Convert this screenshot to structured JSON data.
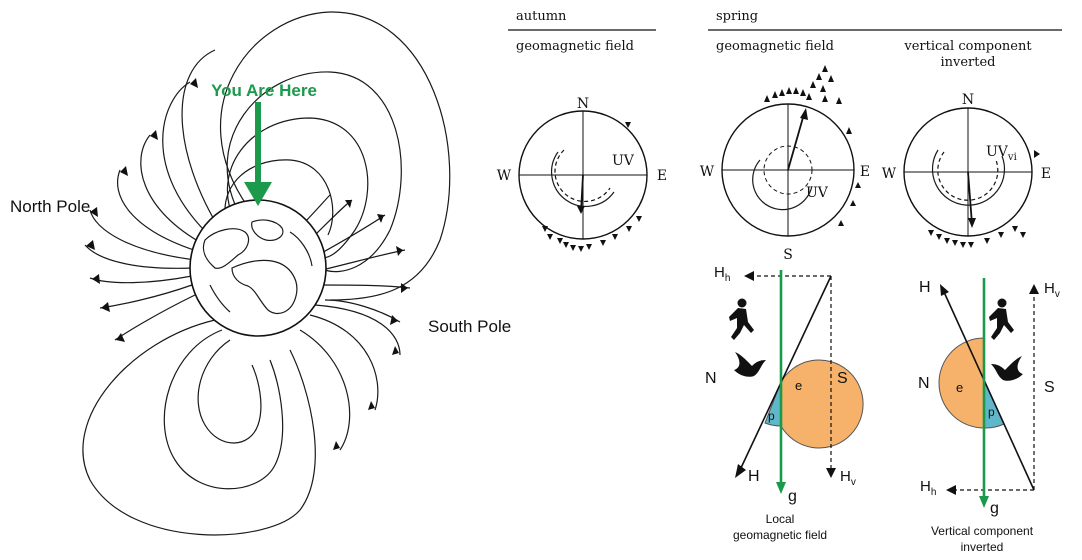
{
  "earth_panel": {
    "you_are_here": "You Are Here",
    "north_pole": "North Pole",
    "south_pole": "South Pole"
  },
  "headers": {
    "autumn": "autumn",
    "spring": "spring",
    "autumn_sub": "geomagnetic field",
    "spring_sub": "geomagnetic field",
    "inverted_sub_line1": "vertical component",
    "inverted_sub_line2": "inverted"
  },
  "compass": {
    "N": "N",
    "S": "S",
    "E": "E",
    "W": "W",
    "uv": "UV",
    "uv_vi_base": "UV",
    "uv_vi_sub": "vi"
  },
  "vector_labels": {
    "H": "H",
    "Hh_base": "H",
    "Hh_sub": "h",
    "Hv_base": "H",
    "Hv_sub": "v",
    "g": "g",
    "N": "N",
    "S": "S",
    "e": "e",
    "p": "p"
  },
  "captions": {
    "local_line1": "Local",
    "local_line2": "geomagnetic field",
    "inverted_line1": "Vertical component",
    "inverted_line2": "inverted"
  },
  "colors": {
    "green": "#1a9a4a",
    "orange": "#f6b26b",
    "teal": "#5fb8c9"
  }
}
